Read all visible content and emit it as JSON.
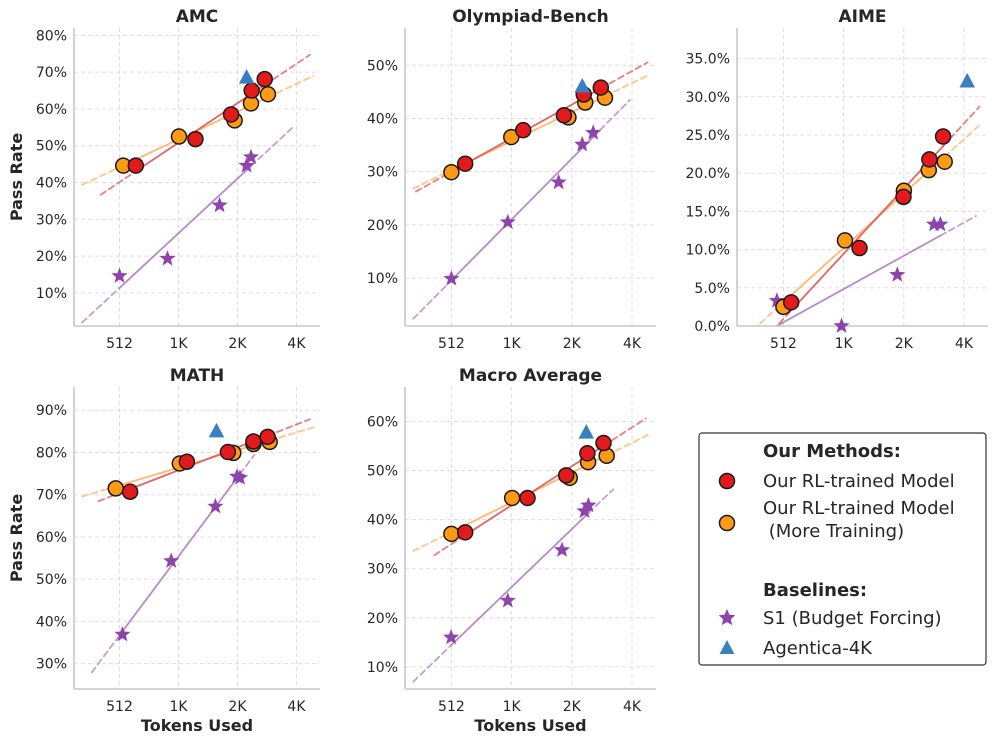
{
  "colors": {
    "rl": "#e31a1c",
    "rl_more": "#ff9a14",
    "s1": "#8e44ad",
    "agentica": "#3a7fc0",
    "rl_fit": "#e05555",
    "rl_more_fit": "#ffb060",
    "s1_fit": "#b07cc6"
  },
  "chart_data": [
    {
      "type": "scatter",
      "title": "AMC",
      "xlabel": "",
      "ylabel": "Pass Rate",
      "x_scale": "log2",
      "xlim": [
        300,
        5400
      ],
      "ylim": [
        1.0,
        82.0
      ],
      "x_ticks": [
        512,
        1024,
        2048,
        4096
      ],
      "x_tick_labels": [
        "512",
        "1K",
        "2K",
        "4K"
      ],
      "y_ticks": [
        10,
        20,
        30,
        40,
        50,
        60,
        70,
        80
      ],
      "y_tick_labels": [
        "10%",
        "20%",
        "30%",
        "40%",
        "50%",
        "60%",
        "70%",
        "80%"
      ],
      "series": [
        {
          "key": "rl",
          "name": "Our RL-trained Model",
          "x": [
            620,
            1250,
            1900,
            2420,
            2820
          ],
          "y": [
            44.6,
            51.8,
            58.5,
            65.0,
            68.1
          ],
          "fit_x": [
            410,
            4800
          ]
        },
        {
          "key": "rl_more",
          "name": "Our RL-trained Model (More Training)",
          "x": [
            535,
            1030,
            1980,
            2400,
            2930
          ],
          "y": [
            44.6,
            52.5,
            56.9,
            61.5,
            64.0
          ],
          "fit_x": [
            330,
            5000
          ]
        },
        {
          "key": "s1",
          "name": "S1 (Budget Forcing)",
          "x": [
            512,
            900,
            1660,
            2280,
            2400
          ],
          "y": [
            14.6,
            19.3,
            33.8,
            44.6,
            46.9
          ],
          "fit_x": [
            330,
            4000
          ]
        },
        {
          "key": "agentica",
          "name": "Agentica-4K",
          "x": [
            2280
          ],
          "y": [
            68.5
          ]
        }
      ]
    },
    {
      "type": "scatter",
      "title": "Olympiad-Bench",
      "xlabel": "",
      "ylabel": "",
      "x_scale": "log2",
      "xlim": [
        300,
        5400
      ],
      "ylim": [
        1.0,
        57.0
      ],
      "x_ticks": [
        512,
        1024,
        2048,
        4096
      ],
      "x_tick_labels": [
        "512",
        "1K",
        "2K",
        "4K"
      ],
      "y_ticks": [
        10,
        20,
        30,
        40,
        50
      ],
      "y_tick_labels": [
        "10%",
        "20%",
        "30%",
        "40%",
        "50%"
      ],
      "series": [
        {
          "key": "rl",
          "name": "Our RL-trained Model",
          "x": [
            600,
            1170,
            1870,
            2350,
            2860
          ],
          "y": [
            31.5,
            37.8,
            40.6,
            44.5,
            45.8
          ],
          "fit_x": [
            340,
            4900
          ]
        },
        {
          "key": "rl_more",
          "name": "Our RL-trained Model (More Training)",
          "x": [
            512,
            1020,
            1970,
            2390,
            3000
          ],
          "y": [
            29.9,
            36.5,
            40.2,
            43.0,
            43.9
          ],
          "fit_x": [
            330,
            5000
          ]
        },
        {
          "key": "s1",
          "name": "S1 (Budget Forcing)",
          "x": [
            512,
            980,
            1760,
            2310,
            2620
          ],
          "y": [
            9.9,
            20.5,
            28.0,
            35.1,
            37.3
          ],
          "fit_x": [
            330,
            4000
          ]
        },
        {
          "key": "agentica",
          "name": "Agentica-4K",
          "x": [
            2310
          ],
          "y": [
            46.0
          ]
        }
      ]
    },
    {
      "type": "scatter",
      "title": "AIME",
      "xlabel": "",
      "ylabel": "",
      "x_scale": "log2",
      "xlim": [
        300,
        5400
      ],
      "ylim": [
        0.0,
        39.0
      ],
      "x_ticks": [
        512,
        1024,
        2048,
        4096
      ],
      "x_tick_labels": [
        "512",
        "1K",
        "2K",
        "4K"
      ],
      "y_ticks": [
        0,
        5,
        10,
        15,
        20,
        25,
        30,
        35
      ],
      "y_tick_labels": [
        "0.0%",
        "5.0%",
        "10.0%",
        "15.0%",
        "20.0%",
        "25.0%",
        "30.0%",
        "35.0%"
      ],
      "series": [
        {
          "key": "rl",
          "name": "Our RL-trained Model",
          "x": [
            560,
            1230,
            2040,
            2750,
            3220
          ],
          "y": [
            3.1,
            10.2,
            16.9,
            21.8,
            24.8
          ],
          "fit_x": [
            330,
            4900
          ]
        },
        {
          "key": "rl_more",
          "name": "Our RL-trained Model (More Training)",
          "x": [
            512,
            1040,
            2050,
            2730,
            3280
          ],
          "y": [
            2.5,
            11.2,
            17.7,
            20.4,
            21.5
          ],
          "fit_x": [
            330,
            5000
          ]
        },
        {
          "key": "s1",
          "name": "S1 (Budget Forcing)",
          "x": [
            475,
            1000,
            1900,
            2900,
            3120
          ],
          "y": [
            3.3,
            0.0,
            6.7,
            13.3,
            13.3
          ],
          "fit_x": [
            330,
            4700
          ]
        },
        {
          "key": "agentica",
          "name": "Agentica-4K",
          "x": [
            4250
          ],
          "y": [
            32.0
          ]
        }
      ]
    },
    {
      "type": "scatter",
      "title": "MATH",
      "xlabel": "Tokens Used",
      "ylabel": "Pass Rate",
      "x_scale": "log2",
      "xlim": [
        300,
        5400
      ],
      "ylim": [
        24.0,
        95.5
      ],
      "x_ticks": [
        512,
        1024,
        2048,
        4096
      ],
      "x_tick_labels": [
        "512",
        "1K",
        "2K",
        "4K"
      ],
      "y_ticks": [
        30,
        40,
        50,
        60,
        70,
        80,
        90
      ],
      "y_tick_labels": [
        "30%",
        "40%",
        "50%",
        "60%",
        "70%",
        "80%",
        "90%"
      ],
      "series": [
        {
          "key": "rl",
          "name": "Our RL-trained Model",
          "x": [
            580,
            1130,
            1830,
            2470,
            2920
          ],
          "y": [
            70.7,
            77.8,
            80.1,
            82.6,
            83.7
          ],
          "fit_x": [
            400,
            4800
          ]
        },
        {
          "key": "rl_more",
          "name": "Our RL-trained Model (More Training)",
          "x": [
            490,
            1040,
            1950,
            2470,
            2990
          ],
          "y": [
            71.5,
            77.4,
            79.9,
            82.0,
            82.5
          ],
          "fit_x": [
            330,
            5000
          ]
        },
        {
          "key": "s1",
          "name": "S1 (Budget Forcing)",
          "x": [
            530,
            940,
            1580,
            2040,
            2110
          ],
          "y": [
            36.9,
            54.3,
            67.2,
            74.3,
            74.0
          ],
          "fit_x": [
            370,
            2500
          ]
        },
        {
          "key": "agentica",
          "name": "Agentica-4K",
          "x": [
            1600
          ],
          "y": [
            85.0
          ]
        }
      ]
    },
    {
      "type": "scatter",
      "title": "Macro Average",
      "xlabel": "Tokens Used",
      "ylabel": "",
      "x_scale": "log2",
      "xlim": [
        300,
        5400
      ],
      "ylim": [
        5.5,
        67.0
      ],
      "x_ticks": [
        512,
        1024,
        2048,
        4096
      ],
      "x_tick_labels": [
        "512",
        "1K",
        "2K",
        "4K"
      ],
      "y_ticks": [
        10,
        20,
        30,
        40,
        50,
        60
      ],
      "y_tick_labels": [
        "10%",
        "20%",
        "30%",
        "40%",
        "50%",
        "60%"
      ],
      "series": [
        {
          "key": "rl",
          "name": "Our RL-trained Model",
          "x": [
            600,
            1230,
            1920,
            2450,
            2950
          ],
          "y": [
            37.4,
            44.4,
            49.0,
            53.5,
            55.6
          ],
          "fit_x": [
            420,
            4800
          ]
        },
        {
          "key": "rl_more",
          "name": "Our RL-trained Model (More Training)",
          "x": [
            512,
            1030,
            2000,
            2470,
            3060
          ],
          "y": [
            37.1,
            44.4,
            48.5,
            51.7,
            53.0
          ],
          "fit_x": [
            330,
            5000
          ]
        },
        {
          "key": "s1",
          "name": "S1 (Budget Forcing)",
          "x": [
            510,
            980,
            1830,
            2370,
            2480
          ],
          "y": [
            16.0,
            23.5,
            33.8,
            41.7,
            42.9
          ],
          "fit_x": [
            330,
            3300
          ]
        },
        {
          "key": "agentica",
          "name": "Agentica-4K",
          "x": [
            2420
          ],
          "y": [
            57.7
          ]
        }
      ]
    }
  ],
  "legend": {
    "group1_title": "Our Methods:",
    "rl_label": "Our RL-trained Model",
    "rl_more_line1": "Our RL-trained Model",
    "rl_more_line2": " (More Training)",
    "group2_title": "Baselines:",
    "s1_label": "S1 (Budget Forcing)",
    "agentica_label": "Agentica-4K"
  }
}
